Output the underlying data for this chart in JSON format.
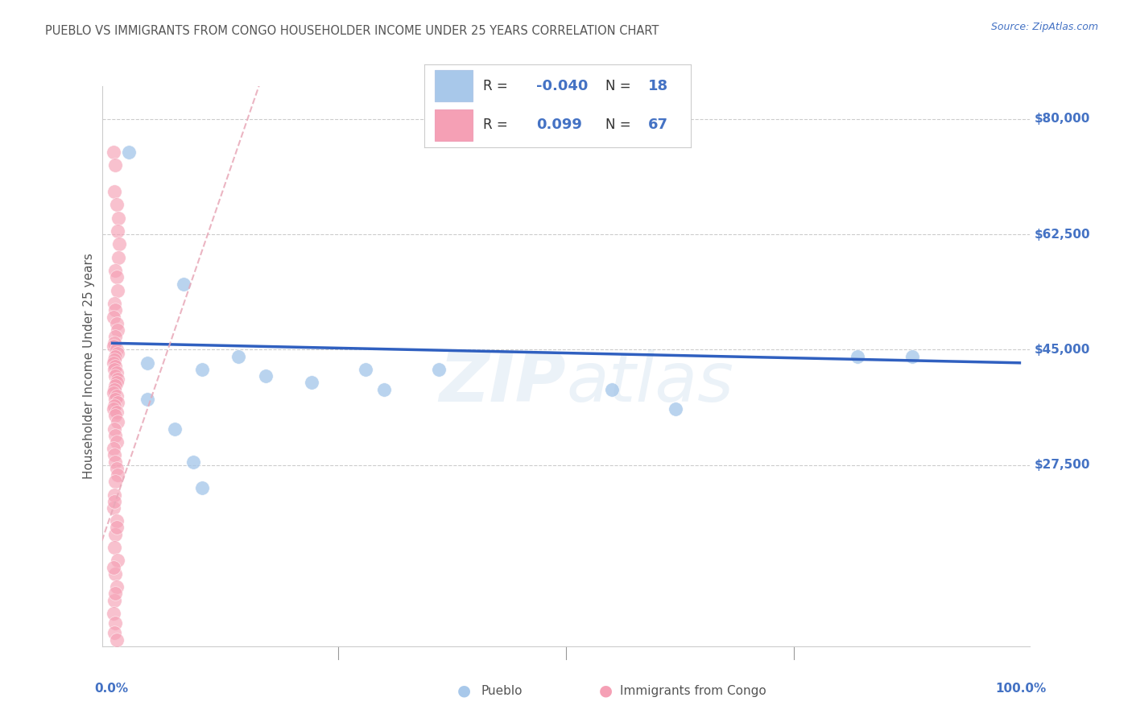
{
  "title": "PUEBLO VS IMMIGRANTS FROM CONGO HOUSEHOLDER INCOME UNDER 25 YEARS CORRELATION CHART",
  "source": "Source: ZipAtlas.com",
  "ylabel": "Householder Income Under 25 years",
  "ymin": 0,
  "ymax": 85000,
  "xmin": 0.0,
  "xmax": 1.0,
  "pueblo_color": "#a8c8ea",
  "congo_color": "#f5a0b5",
  "trendline_pueblo_color": "#3060c0",
  "trendline_congo_color": "#e8a8b8",
  "ytick_positions": [
    27500,
    45000,
    62500,
    80000
  ],
  "ytick_labels": [
    "$27,500",
    "$45,000",
    "$62,500",
    "$80,000"
  ],
  "grid_color": "#cccccc",
  "background_color": "#ffffff",
  "title_color": "#555555",
  "axis_label_color": "#555555",
  "ytick_label_color": "#4472c4",
  "xtick_label_color": "#4472c4",
  "legend_text_color": "#4472c4",
  "legend_label_color": "#333333",
  "watermark": "ZIPatlas",
  "pueblo_x": [
    0.02,
    0.08,
    0.1,
    0.17,
    0.22,
    0.28,
    0.3,
    0.36,
    0.55,
    0.82,
    0.88,
    0.04,
    0.07,
    0.09,
    0.1,
    0.14,
    0.62,
    0.04
  ],
  "pueblo_y": [
    75000,
    55000,
    42000,
    41000,
    40000,
    42000,
    39000,
    42000,
    39000,
    44000,
    44000,
    43000,
    33000,
    28000,
    24000,
    44000,
    36000,
    37500
  ],
  "congo_x": [
    0.003,
    0.005,
    0.004,
    0.006,
    0.008,
    0.007,
    0.009,
    0.008,
    0.005,
    0.006,
    0.007,
    0.004,
    0.005,
    0.003,
    0.006,
    0.007,
    0.005,
    0.004,
    0.003,
    0.006,
    0.007,
    0.005,
    0.004,
    0.003,
    0.005,
    0.004,
    0.006,
    0.005,
    0.007,
    0.006,
    0.005,
    0.004,
    0.003,
    0.006,
    0.005,
    0.007,
    0.004,
    0.003,
    0.006,
    0.005,
    0.007,
    0.004,
    0.005,
    0.006,
    0.003,
    0.004,
    0.005,
    0.006,
    0.007,
    0.005,
    0.004,
    0.003,
    0.006,
    0.005,
    0.004,
    0.007,
    0.005,
    0.006,
    0.004,
    0.003,
    0.005,
    0.004,
    0.006,
    0.005,
    0.003,
    0.006,
    0.004
  ],
  "congo_y": [
    75000,
    73000,
    69000,
    67000,
    65000,
    63000,
    61000,
    59000,
    57000,
    56000,
    54000,
    52000,
    51000,
    50000,
    49000,
    48000,
    47000,
    46000,
    45500,
    45000,
    44500,
    44000,
    43500,
    43000,
    42500,
    42000,
    41500,
    41000,
    40500,
    40000,
    39500,
    39000,
    38500,
    38000,
    37500,
    37000,
    36500,
    36000,
    35500,
    35000,
    34000,
    33000,
    32000,
    31000,
    30000,
    29000,
    28000,
    27000,
    26000,
    25000,
    23000,
    21000,
    19000,
    17000,
    15000,
    13000,
    11000,
    9000,
    7000,
    5000,
    3500,
    2000,
    1000,
    8000,
    12000,
    18000,
    22000
  ]
}
